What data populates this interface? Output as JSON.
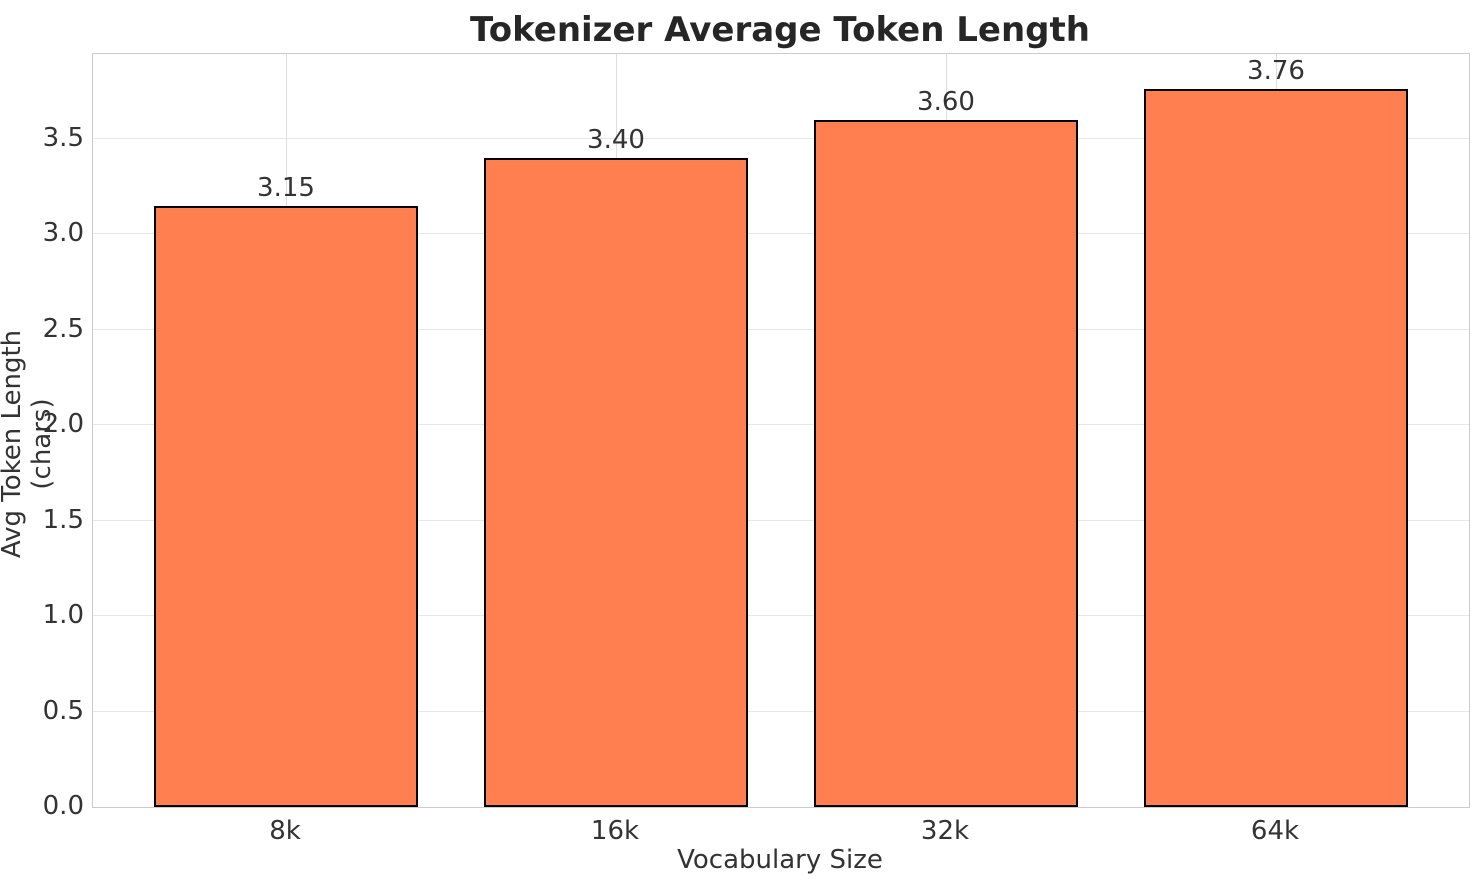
{
  "chart_data": {
    "type": "bar",
    "title": "Tokenizer Average Token Length",
    "xlabel": "Vocabulary Size",
    "ylabel": "Avg Token Length (chars)",
    "categories": [
      "8k",
      "16k",
      "32k",
      "64k"
    ],
    "values": [
      3.15,
      3.4,
      3.6,
      3.76
    ],
    "value_labels": [
      "3.15",
      "3.40",
      "3.60",
      "3.76"
    ],
    "ytick_values": [
      0.0,
      0.5,
      1.0,
      1.5,
      2.0,
      2.5,
      3.0,
      3.5
    ],
    "ytick_labels": [
      "0.0",
      "0.5",
      "1.0",
      "1.5",
      "2.0",
      "2.5",
      "3.0",
      "3.5"
    ],
    "ylim": [
      0,
      3.945
    ],
    "grid": true,
    "legend": null,
    "colors": {
      "bar_fill": "#FF7F50",
      "bar_edge": "#000000",
      "grid_h": "#e7e7e7",
      "grid_v": "#dedede",
      "spine": "#cccccc",
      "title_text": "#262626",
      "tick_text": "#333333"
    }
  }
}
